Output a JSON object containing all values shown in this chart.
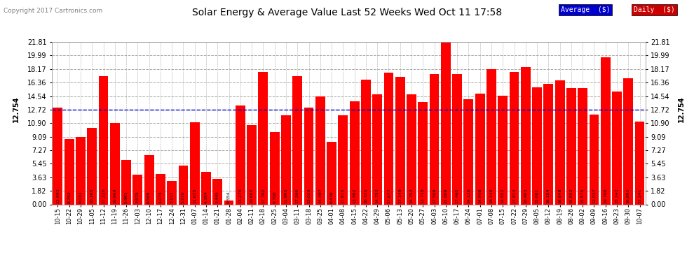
{
  "title": "Solar Energy & Average Value Last 52 Weeks Wed Oct 11 17:58",
  "copyright": "Copyright 2017 Cartronics.com",
  "bar_color": "#FF0000",
  "average_color": "#0000CC",
  "average_value": 12.754,
  "average_label": "Average  ($)",
  "daily_label": "Daily  ($)",
  "legend_avg_bg": "#0000CC",
  "legend_daily_bg": "#CC0000",
  "background_color": "#FFFFFF",
  "plot_bg_color": "#FFFFFF",
  "grid_color": "#AAAAAA",
  "yticks": [
    0.0,
    1.82,
    3.63,
    5.45,
    7.27,
    9.09,
    10.9,
    12.72,
    14.54,
    16.36,
    18.17,
    19.99,
    21.81
  ],
  "categories": [
    "10-15",
    "10-22",
    "10-29",
    "11-05",
    "11-12",
    "11-19",
    "11-26",
    "12-03",
    "12-10",
    "12-17",
    "12-24",
    "12-31",
    "01-07",
    "01-14",
    "01-21",
    "01-28",
    "02-04",
    "02-11",
    "02-18",
    "02-25",
    "03-04",
    "03-11",
    "03-18",
    "03-25",
    "04-01",
    "04-08",
    "04-15",
    "04-22",
    "04-29",
    "05-06",
    "05-13",
    "05-20",
    "05-27",
    "06-03",
    "06-10",
    "06-17",
    "06-24",
    "07-01",
    "07-08",
    "07-15",
    "07-22",
    "07-29",
    "08-05",
    "08-12",
    "08-19",
    "08-26",
    "09-02",
    "09-09",
    "09-16",
    "09-23",
    "09-30",
    "10-07"
  ],
  "values": [
    12.993,
    8.792,
    9.031,
    10.268,
    17.226,
    10.969,
    5.961,
    3.975,
    6.569,
    4.074,
    3.111,
    5.21,
    11.035,
    4.354,
    3.445,
    0.554,
    13.276,
    10.605,
    17.76,
    9.7,
    11.965,
    17.206,
    13.029,
    14.497,
    8.436,
    11.916,
    13.882,
    16.72,
    14.753,
    17.677,
    17.149,
    14.753,
    13.718,
    17.509,
    21.809,
    17.465,
    14.126,
    14.908,
    18.14,
    14.552,
    17.813,
    18.463,
    15.681,
    16.184,
    16.648,
    15.592,
    15.576,
    12.037,
    19.708,
    15.143,
    16.892,
    11.141
  ]
}
